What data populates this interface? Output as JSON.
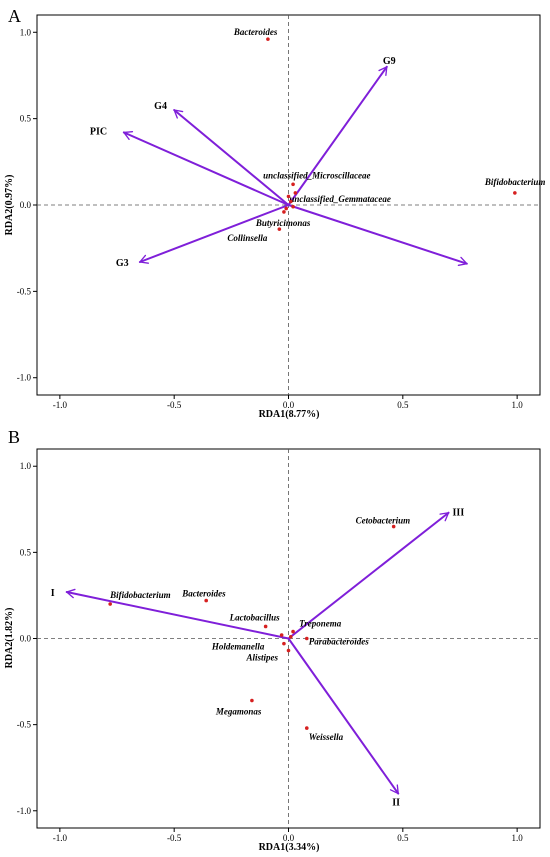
{
  "chart_data": [
    {
      "type": "scatter",
      "panel_label": "A",
      "xlabel": "RDA1(8.77%)",
      "ylabel": "RDA2(0.97%)",
      "xlim": [
        -1.1,
        1.1
      ],
      "ylim": [
        -1.1,
        1.1
      ],
      "xticks": [
        -1.0,
        -0.5,
        0.0,
        0.5,
        1.0
      ],
      "yticks": [
        -1.0,
        -0.5,
        0.0,
        0.5,
        1.0
      ],
      "tick_labels_x": [
        "-1.0",
        "-0.5",
        "0.0",
        "0.5",
        "1.0"
      ],
      "tick_labels_y": [
        "-1.0",
        "-0.5",
        "0.0",
        "0.5",
        "1.0"
      ],
      "reference_lines": true,
      "arrows": [
        {
          "label": "G9",
          "x": 0.43,
          "y": 0.8
        },
        {
          "label": "G4",
          "x": -0.5,
          "y": 0.55
        },
        {
          "label": "PIC",
          "x": -0.72,
          "y": 0.42
        },
        {
          "label": "G3",
          "x": -0.65,
          "y": -0.33
        },
        {
          "label": "",
          "x": 0.78,
          "y": -0.34
        }
      ],
      "points": [
        {
          "label": "Bacteroides",
          "x": -0.09,
          "y": 0.96
        },
        {
          "label": "Bifidobacterium",
          "x": 0.99,
          "y": 0.07
        },
        {
          "label": "unclassified_Microscillaceae",
          "x": 0.02,
          "y": 0.12
        },
        {
          "label": "unclassified_Gemmataceae",
          "x": 0.03,
          "y": 0.07
        },
        {
          "label": "Butyricimonas",
          "x": -0.02,
          "y": -0.04
        },
        {
          "label": "Collinsella",
          "x": -0.04,
          "y": -0.14
        },
        {
          "label": "",
          "x": 0.01,
          "y": 0.02
        },
        {
          "label": "",
          "x": 0.0,
          "y": 0.05
        },
        {
          "label": "",
          "x": 0.02,
          "y": -0.01
        },
        {
          "label": "",
          "x": -0.01,
          "y": -0.02
        }
      ]
    },
    {
      "type": "scatter",
      "panel_label": "B",
      "xlabel": "RDA1(3.34%)",
      "ylabel": "RDA2(1.82%)",
      "xlim": [
        -1.1,
        1.1
      ],
      "ylim": [
        -1.1,
        1.1
      ],
      "xticks": [
        -1.0,
        -0.5,
        0.0,
        0.5,
        1.0
      ],
      "yticks": [
        -1.0,
        -0.5,
        0.0,
        0.5,
        1.0
      ],
      "tick_labels_x": [
        "-1.0",
        "-0.5",
        "0.0",
        "0.5",
        "1.0"
      ],
      "tick_labels_y": [
        "-1.0",
        "-0.5",
        "0.0",
        "0.5",
        "1.0"
      ],
      "reference_lines": true,
      "arrows": [
        {
          "label": "III",
          "x": 0.7,
          "y": 0.73
        },
        {
          "label": "I",
          "x": -0.97,
          "y": 0.27
        },
        {
          "label": "II",
          "x": 0.48,
          "y": -0.9
        }
      ],
      "points": [
        {
          "label": "Cetobacterium",
          "x": 0.46,
          "y": 0.65
        },
        {
          "label": "Bifidobacterium",
          "x": -0.78,
          "y": 0.2
        },
        {
          "label": "Bacteroides",
          "x": -0.36,
          "y": 0.22
        },
        {
          "label": "Lactobacillus",
          "x": -0.1,
          "y": 0.07
        },
        {
          "label": "Treponema",
          "x": 0.02,
          "y": 0.04
        },
        {
          "label": "Parabacteroides",
          "x": 0.08,
          "y": 0.0
        },
        {
          "label": "Holdemanella",
          "x": -0.02,
          "y": -0.03
        },
        {
          "label": "Alistipes",
          "x": 0.0,
          "y": -0.07
        },
        {
          "label": "Megamonas",
          "x": -0.16,
          "y": -0.36
        },
        {
          "label": "Weissella",
          "x": 0.08,
          "y": -0.52
        },
        {
          "label": "",
          "x": 0.01,
          "y": 0.01
        },
        {
          "label": "",
          "x": -0.03,
          "y": 0.02
        }
      ]
    }
  ]
}
